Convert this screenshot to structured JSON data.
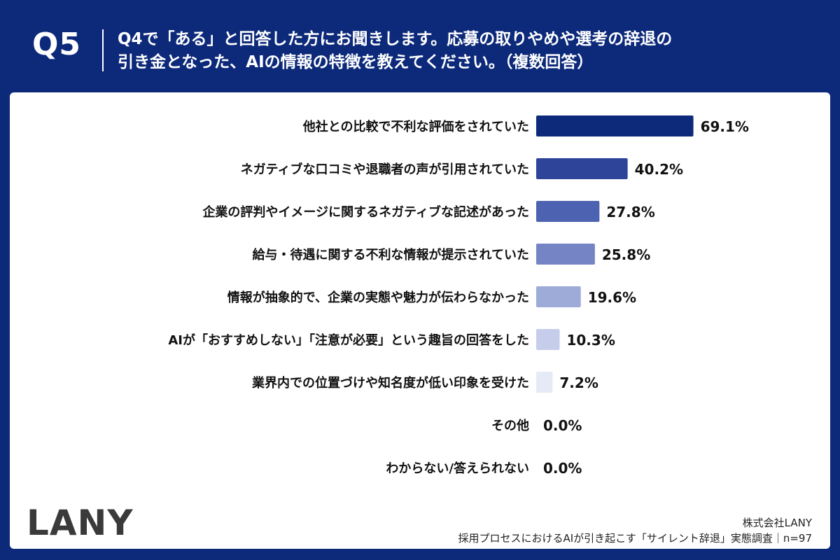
{
  "header": {
    "question_label": "Q5",
    "question_line1": "Q4で「ある」と回答した方にお聞きします。応募の取りやめや選考の辞退の",
    "question_line2": "引き金となった、AIの情報の特徴を教えてください。（複数回答）"
  },
  "brand": {
    "logo_text": "LANY"
  },
  "footer": {
    "company": "株式会社LANY",
    "source": "採用プロセスにおけるAIが引き起こす「サイレント辞退」実態調査｜n=97"
  },
  "colors": {
    "header_bg": "#0d2a7a",
    "bar_colors": [
      "#0d2a7a",
      "#2d4499",
      "#4d62b0",
      "#7484c4",
      "#9eaad8",
      "#c5cdea",
      "#e6eaf7",
      "#e6eaf7",
      "#e6eaf7"
    ]
  },
  "chart_data": {
    "type": "bar",
    "orientation": "horizontal",
    "categories": [
      "他社との比較で不利な評価をされていた",
      "ネガティブな口コミや退職者の声が引用されていた",
      "企業の評判やイメージに関するネガティブな記述があった",
      "給与・待遇に関する不利な情報が提示されていた",
      "情報が抽象的で、企業の実態や魅力が伝わらなかった",
      "AIが「おすすめしない」「注意が必要」という趣旨の回答をした",
      "業界内での位置づけや知名度が低い印象を受けた",
      "その他",
      "わからない/答えられない"
    ],
    "values": [
      69.1,
      40.2,
      27.8,
      25.8,
      19.6,
      10.3,
      7.2,
      0.0,
      0.0
    ],
    "data_labels": [
      "69.1%",
      "40.2%",
      "27.8%",
      "25.8%",
      "19.6%",
      "10.3%",
      "7.2%",
      "0.0%",
      "0.0%"
    ],
    "unit": "%",
    "xlim": [
      0,
      100
    ],
    "grid": false,
    "legend": "none"
  }
}
